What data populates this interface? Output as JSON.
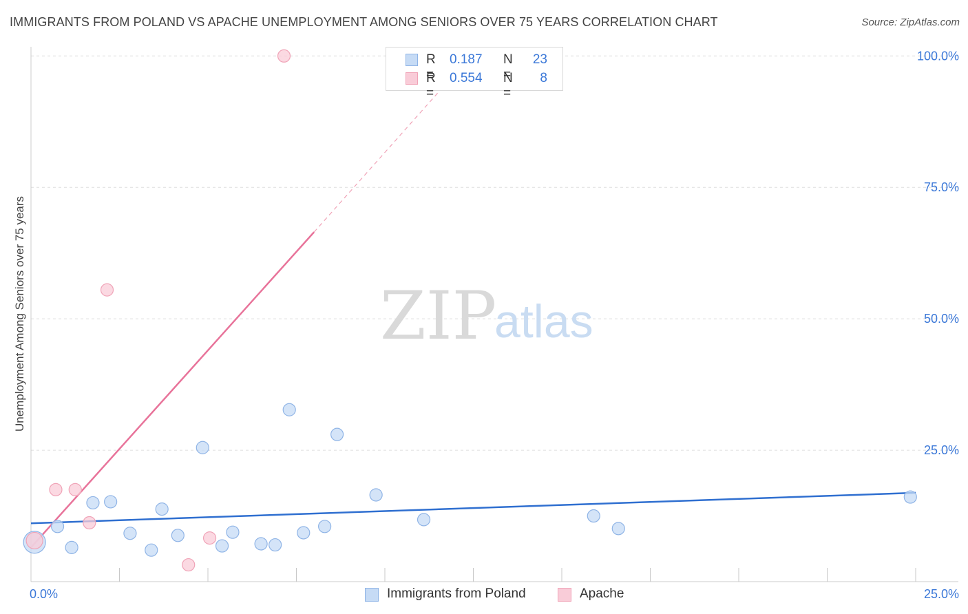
{
  "header": {
    "title": "IMMIGRANTS FROM POLAND VS APACHE UNEMPLOYMENT AMONG SENIORS OVER 75 YEARS CORRELATION CHART",
    "source": "Source: ZipAtlas.com"
  },
  "watermark": {
    "zip": "ZIP",
    "atlas": "atlas"
  },
  "legend": {
    "rows": [
      {
        "r_label": "R =",
        "r_value": "0.187",
        "n_label": "N =",
        "n_value": "23"
      },
      {
        "r_label": "R =",
        "r_value": "0.554",
        "n_label": "N =",
        "n_value": "8"
      }
    ]
  },
  "bottom_legend": {
    "items": [
      {
        "label": "Immigrants from Poland"
      },
      {
        "label": "Apache"
      }
    ]
  },
  "colors": {
    "poland_fill": "#c6dbf5",
    "poland_stroke": "#8fb4e6",
    "poland_line": "#2f6fd0",
    "apache_fill": "#f9ccd8",
    "apache_stroke": "#f0a3b7",
    "apache_line": "#e8739a",
    "tick_text": "#3b78d8",
    "grid": "#dddddd"
  },
  "chart_data": {
    "type": "scatter",
    "title": "IMMIGRANTS FROM POLAND VS APACHE UNEMPLOYMENT AMONG SENIORS OVER 75 YEARS CORRELATION CHART",
    "xlabel": "",
    "ylabel": "Unemployment Among Seniors over 75 years",
    "xlim": [
      0,
      25
    ],
    "ylim": [
      0,
      102
    ],
    "x_tick_labels": [
      "0.0%",
      "25.0%"
    ],
    "y_ticks": [
      25,
      50,
      75,
      100
    ],
    "y_tick_labels": [
      "25.0%",
      "50.0%",
      "75.0%",
      "100.0%"
    ],
    "grid": true,
    "series": [
      {
        "name": "Immigrants from Poland",
        "r": 0.187,
        "n": 23,
        "points": [
          [
            0.1,
            7.5
          ],
          [
            0.75,
            10.5
          ],
          [
            1.15,
            6.5
          ],
          [
            1.75,
            15.0
          ],
          [
            2.25,
            15.2
          ],
          [
            2.8,
            9.2
          ],
          [
            3.4,
            6.0
          ],
          [
            3.7,
            13.8
          ],
          [
            4.15,
            8.8
          ],
          [
            4.85,
            25.5
          ],
          [
            5.4,
            6.8
          ],
          [
            5.7,
            9.4
          ],
          [
            6.5,
            7.2
          ],
          [
            6.9,
            7.0
          ],
          [
            7.3,
            32.7
          ],
          [
            7.7,
            9.3
          ],
          [
            8.3,
            10.5
          ],
          [
            8.65,
            28.0
          ],
          [
            9.75,
            16.5
          ],
          [
            11.1,
            11.8
          ],
          [
            15.9,
            12.5
          ],
          [
            16.6,
            10.1
          ],
          [
            24.85,
            16.1
          ]
        ],
        "trend": {
          "x": [
            0,
            25
          ],
          "y": [
            11.1,
            16.9
          ]
        }
      },
      {
        "name": "Apache",
        "r": 0.554,
        "n": 8,
        "points": [
          [
            0.1,
            7.8
          ],
          [
            0.7,
            17.5
          ],
          [
            1.25,
            17.5
          ],
          [
            1.65,
            11.2
          ],
          [
            2.15,
            55.5
          ],
          [
            4.45,
            3.2
          ],
          [
            5.05,
            8.3
          ],
          [
            7.15,
            100.0
          ]
        ],
        "trend": {
          "x": [
            0,
            8.0
          ],
          "y": [
            6.5,
            66.5
          ]
        },
        "trend_extension": {
          "x": [
            8.0,
            11.5
          ],
          "y": [
            66.5,
            93.0
          ]
        }
      }
    ]
  }
}
